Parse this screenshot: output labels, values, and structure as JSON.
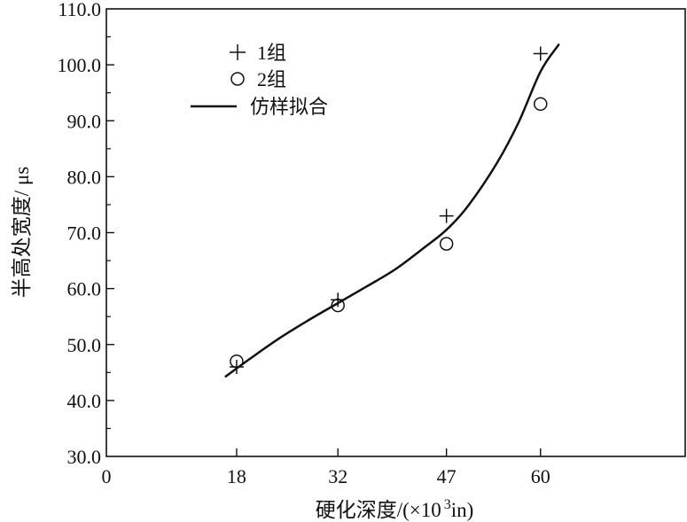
{
  "chart_data": {
    "type": "scatter",
    "title": "",
    "xlabel_main": "硬化深度/(×10",
    "xlabel_exp": "3",
    "xlabel_unit": "in)",
    "ylabel": "半高处宽度/ μs",
    "xlim": [
      0,
      80
    ],
    "ylim": [
      30,
      110
    ],
    "x_ticks": [
      {
        "value": 0,
        "label": "0"
      },
      {
        "value": 18,
        "label": "18"
      },
      {
        "value": 32,
        "label": "32"
      },
      {
        "value": 47,
        "label": "47"
      },
      {
        "value": 60,
        "label": "60"
      }
    ],
    "y_ticks": [
      {
        "value": 30,
        "label": "30.0"
      },
      {
        "value": 40,
        "label": "40.0"
      },
      {
        "value": 50,
        "label": "50.0"
      },
      {
        "value": 60,
        "label": "60.0"
      },
      {
        "value": 70,
        "label": "70.0"
      },
      {
        "value": 80,
        "label": "80.0"
      },
      {
        "value": 90,
        "label": "90.0"
      },
      {
        "value": 100,
        "label": "100.0"
      },
      {
        "value": 110,
        "label": "110.0"
      }
    ],
    "legend_position": "top-left",
    "grid": false,
    "series": [
      {
        "name": "1组",
        "marker": "plus",
        "points": [
          {
            "x": 18,
            "y": 46
          },
          {
            "x": 32,
            "y": 58
          },
          {
            "x": 47,
            "y": 73
          },
          {
            "x": 60,
            "y": 102
          }
        ]
      },
      {
        "name": "2组",
        "marker": "circle",
        "points": [
          {
            "x": 18,
            "y": 47
          },
          {
            "x": 32,
            "y": 57
          },
          {
            "x": 47,
            "y": 68
          },
          {
            "x": 60,
            "y": 93
          }
        ]
      },
      {
        "name": "仿样拟合",
        "marker": "line",
        "points": [
          {
            "x": 16.5,
            "y": 44.3
          },
          {
            "x": 20,
            "y": 47.6
          },
          {
            "x": 24,
            "y": 51.2
          },
          {
            "x": 28,
            "y": 54.4
          },
          {
            "x": 32,
            "y": 57.4
          },
          {
            "x": 36,
            "y": 60.4
          },
          {
            "x": 40,
            "y": 63.5
          },
          {
            "x": 44,
            "y": 67.4
          },
          {
            "x": 47,
            "y": 70.5
          },
          {
            "x": 50,
            "y": 74.8
          },
          {
            "x": 54,
            "y": 82.5
          },
          {
            "x": 57,
            "y": 89.8
          },
          {
            "x": 60,
            "y": 98.8
          },
          {
            "x": 62.5,
            "y": 103.6
          }
        ]
      }
    ]
  }
}
